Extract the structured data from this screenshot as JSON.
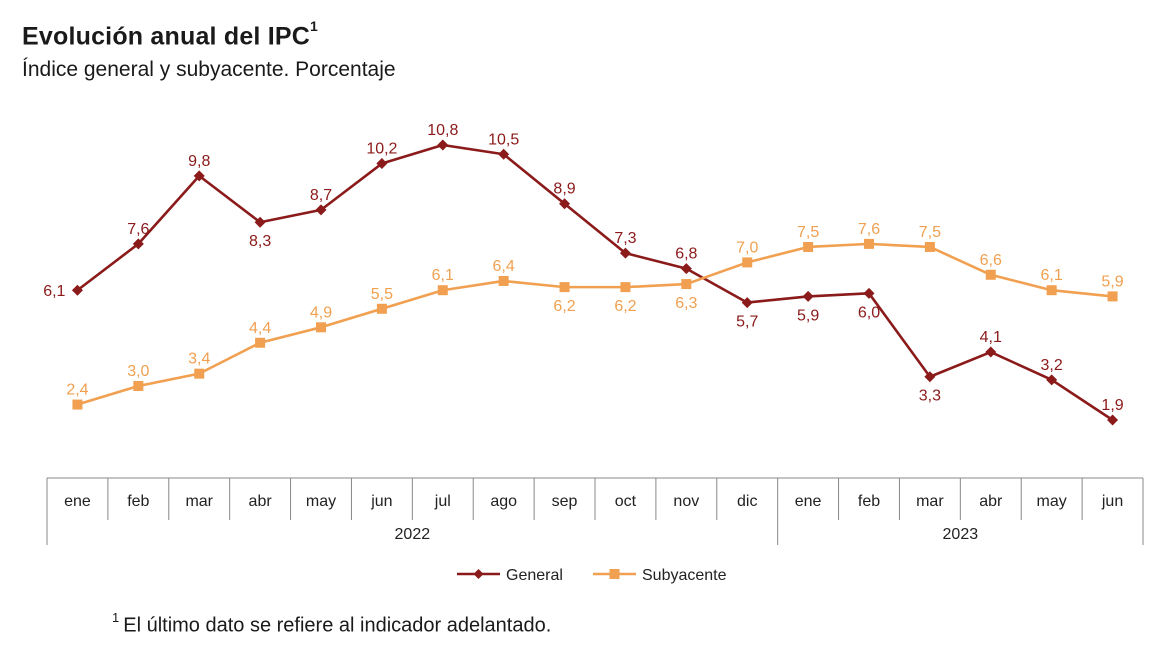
{
  "title": "Evolución anual del IPC",
  "title_sup": "1",
  "subtitle": "Índice general y subyacente. Porcentaje",
  "footnote_sup": "1",
  "footnote": "El último dato se refiere al indicador adelantado.",
  "chart_data": {
    "type": "line",
    "categories": [
      "ene",
      "feb",
      "mar",
      "abr",
      "may",
      "jun",
      "jul",
      "ago",
      "sep",
      "oct",
      "nov",
      "dic",
      "ene",
      "feb",
      "mar",
      "abr",
      "may",
      "jun"
    ],
    "year_groups": [
      {
        "label": "2022",
        "count": 12
      },
      {
        "label": "2023",
        "count": 6
      }
    ],
    "series": [
      {
        "name": "General",
        "color": "#8b1a1a",
        "marker": "diamond",
        "values": [
          6.1,
          7.6,
          9.8,
          8.3,
          8.7,
          10.2,
          10.8,
          10.5,
          8.9,
          7.3,
          6.8,
          5.7,
          5.9,
          6.0,
          3.3,
          4.1,
          3.2,
          1.9
        ],
        "labels": [
          "6,1",
          "7,6",
          "9,8",
          "8,3",
          "8,7",
          "10,2",
          "10,8",
          "10,5",
          "8,9",
          "7,3",
          "6,8",
          "5,7",
          "5,9",
          "6,0",
          "3,3",
          "4,1",
          "3,2",
          "1,9"
        ]
      },
      {
        "name": "Subyacente",
        "color": "#f0a050",
        "marker": "square",
        "values": [
          2.4,
          3.0,
          3.4,
          4.4,
          4.9,
          5.5,
          6.1,
          6.4,
          6.2,
          6.2,
          6.3,
          7.0,
          7.5,
          7.6,
          7.5,
          6.6,
          6.1,
          5.9
        ],
        "labels": [
          "2,4",
          "3,0",
          "3,4",
          "4,4",
          "4,9",
          "5,5",
          "6,1",
          "6,4",
          "6,2",
          "6,2",
          "6,3",
          "7,0",
          "7,5",
          "7,6",
          "7,5",
          "6,6",
          "6,1",
          "5,9"
        ]
      }
    ],
    "ylim": [
      1.9,
      10.8
    ],
    "legend_position": "bottom-center"
  }
}
